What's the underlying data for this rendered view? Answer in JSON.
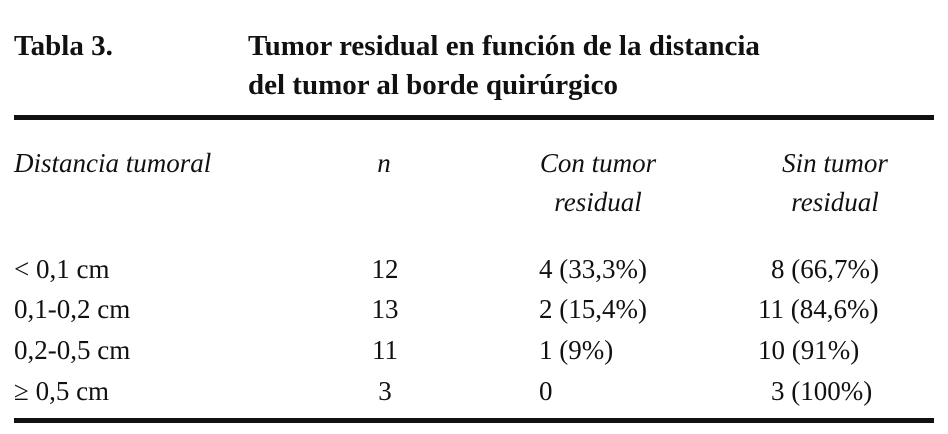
{
  "caption": {
    "label": "Tabla 3.",
    "title_line1": "Tumor residual en función de la distancia",
    "title_line2": "del tumor al borde quirúrgico"
  },
  "table": {
    "headers": {
      "col1": "Distancia tumoral",
      "col2": "n",
      "col3_line1": "Con tumor",
      "col3_line2": "residual",
      "col4_line1": "Sin tumor",
      "col4_line2": "residual"
    },
    "rows": [
      {
        "distance": "< 0,1 cm",
        "n": "12",
        "with": "4 (33,3%)",
        "without": "8 (66,7%)"
      },
      {
        "distance": "0,1-0,2 cm",
        "n": "13",
        "with": "2 (15,4%)",
        "without": "11 (84,6%)"
      },
      {
        "distance": "0,2-0,5 cm",
        "n": "11",
        "with": "1 (9%)",
        "without": "10 (91%)"
      },
      {
        "distance": "≥ 0,5 cm",
        "n": "3",
        "with": "0",
        "without": "3 (100%)"
      }
    ]
  }
}
